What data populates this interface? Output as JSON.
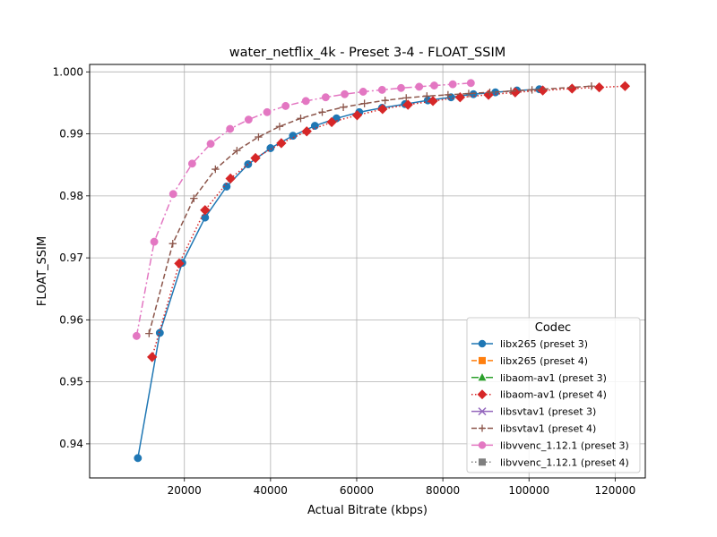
{
  "chart_data": {
    "type": "line",
    "title": "water_netflix_4k - Preset 3-4 - FLOAT_SSIM",
    "xlabel": "Actual Bitrate (kbps)",
    "ylabel": "FLOAT_SSIM",
    "xlim": [
      -2000,
      127000
    ],
    "ylim": [
      0.9345,
      1.0012
    ],
    "xticks": [
      20000,
      40000,
      60000,
      80000,
      100000,
      120000
    ],
    "yticks": [
      0.94,
      0.95,
      0.96,
      0.97,
      0.98,
      0.99,
      1.0
    ],
    "xtick_labels": [
      "20000",
      "40000",
      "60000",
      "80000",
      "100000",
      "120000"
    ],
    "ytick_labels": [
      "0.94",
      "0.95",
      "0.96",
      "0.97",
      "0.98",
      "0.99",
      "1.000"
    ],
    "grid": true,
    "legend": {
      "title": "Codec",
      "placement": "lower-right"
    },
    "series": [
      {
        "name": "libx265 (preset 3)",
        "color": "#1f77b4",
        "marker": "circle",
        "line": "solid",
        "x": [
          9200,
          14300,
          19500,
          24800,
          29800,
          34800,
          40000,
          45200,
          50300,
          55300,
          60600,
          65900,
          71200,
          76500,
          81900,
          87100,
          92200,
          97200,
          102400
        ],
        "y": [
          0.9377,
          0.9579,
          0.9692,
          0.9765,
          0.9815,
          0.9851,
          0.9877,
          0.9897,
          0.9913,
          0.9925,
          0.9935,
          0.9942,
          0.9948,
          0.9954,
          0.9959,
          0.9964,
          0.9967,
          0.997,
          0.9972
        ]
      },
      {
        "name": "libx265 (preset 4)",
        "color": "#ff7f0e",
        "marker": "square",
        "line": "dashed",
        "x": [],
        "y": []
      },
      {
        "name": "libaom-av1 (preset 3)",
        "color": "#2ca02c",
        "marker": "triangle",
        "line": "dashdot",
        "x": [],
        "y": []
      },
      {
        "name": "libaom-av1 (preset 4)",
        "color": "#d62728",
        "marker": "diamond",
        "line": "dotted",
        "x": [
          12500,
          18800,
          24800,
          30700,
          36500,
          42500,
          48400,
          54200,
          60100,
          66000,
          71900,
          77700,
          84000,
          90600,
          96800,
          103200,
          110000,
          116300,
          122300
        ],
        "y": [
          0.954,
          0.9691,
          0.9777,
          0.9828,
          0.9861,
          0.9885,
          0.9904,
          0.9919,
          0.993,
          0.994,
          0.9947,
          0.9953,
          0.9959,
          0.9963,
          0.9967,
          0.997,
          0.9973,
          0.9975,
          0.9977
        ]
      },
      {
        "name": "libsvtav1 (preset 3)",
        "color": "#9467bd",
        "marker": "x",
        "line": "solid",
        "x": [],
        "y": []
      },
      {
        "name": "libsvtav1 (preset 4)",
        "color": "#8c564b",
        "marker": "plus",
        "line": "dashed",
        "x": [
          11800,
          17300,
          22200,
          27200,
          32200,
          37200,
          42100,
          47000,
          52000,
          56900,
          61800,
          66600,
          71500,
          76300,
          81200,
          86000,
          90900,
          95800,
          100700,
          114500
        ],
        "y": [
          0.9578,
          0.9723,
          0.9796,
          0.9843,
          0.9873,
          0.9895,
          0.9912,
          0.9925,
          0.9935,
          0.9943,
          0.9949,
          0.9954,
          0.9958,
          0.9961,
          0.9963,
          0.9965,
          0.9967,
          0.9969,
          0.9971,
          0.9977
        ]
      },
      {
        "name": "libvvenc_1.12.1 (preset 3)",
        "color": "#e377c2",
        "marker": "circle",
        "line": "dashdot",
        "x": [
          8900,
          13000,
          17400,
          21800,
          26100,
          30600,
          34900,
          39200,
          43500,
          48200,
          52800,
          57200,
          61500,
          65900,
          70300,
          74500,
          78000,
          82300,
          86500
        ],
        "y": [
          0.9574,
          0.9726,
          0.9803,
          0.9852,
          0.9884,
          0.9908,
          0.9923,
          0.9935,
          0.9945,
          0.9953,
          0.9959,
          0.9964,
          0.9968,
          0.9971,
          0.9974,
          0.9976,
          0.9978,
          0.998,
          0.9982
        ]
      },
      {
        "name": "libvvenc_1.12.1 (preset 4)",
        "color": "#7f7f7f",
        "marker": "square",
        "line": "dotted",
        "x": [],
        "y": []
      }
    ]
  }
}
